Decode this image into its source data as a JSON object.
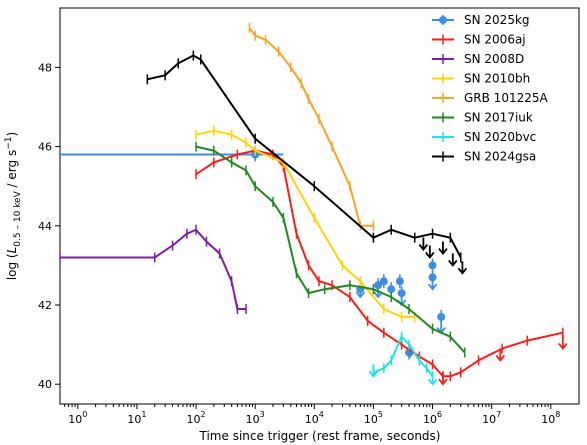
{
  "chart_data": {
    "type": "line",
    "xlabel": "Time since trigger (rest frame, seconds)",
    "ylabel": "log (L_{0.5-10 keV} / erg s^-1)",
    "x_scale": "log",
    "xlim": [
      0.5,
      300000000
    ],
    "ylim": [
      39.5,
      49.5
    ],
    "x_ticks": [
      {
        "value": 1,
        "base": "10",
        "exp": "0"
      },
      {
        "value": 10,
        "base": "10",
        "exp": "1"
      },
      {
        "value": 100,
        "base": "10",
        "exp": "2"
      },
      {
        "value": 1000,
        "base": "10",
        "exp": "3"
      },
      {
        "value": 10000,
        "base": "10",
        "exp": "4"
      },
      {
        "value": 100000,
        "base": "10",
        "exp": "5"
      },
      {
        "value": 1000000,
        "base": "10",
        "exp": "6"
      },
      {
        "value": 10000000,
        "base": "10",
        "exp": "7"
      },
      {
        "value": 100000000,
        "base": "10",
        "exp": "8"
      }
    ],
    "y_ticks": [
      40,
      42,
      44,
      46,
      48
    ],
    "legend_position": "top-right",
    "series": [
      {
        "name": "SN 2025kg",
        "color": "#3a8ee6",
        "style": "points",
        "points": [
          [
            1000,
            45.8
          ],
          [
            60000,
            42.4
          ],
          [
            120000,
            42.5
          ],
          [
            150000,
            42.6
          ],
          [
            200000,
            42.4
          ],
          [
            280000,
            42.6
          ],
          [
            300000,
            42.3
          ],
          [
            400000,
            40.8
          ],
          [
            1000000,
            42.7
          ],
          [
            1000000,
            43.0
          ],
          [
            1400000,
            41.7
          ]
        ],
        "hbar": [
          [
            0.5,
            3000,
            45.8
          ]
        ],
        "upper_limits": [
          [
            60000,
            42.2
          ],
          [
            120000,
            42.2
          ],
          [
            300000,
            42.0
          ],
          [
            420000,
            40.7
          ],
          [
            1000000,
            42.4
          ],
          [
            1400000,
            41.3
          ]
        ]
      },
      {
        "name": "SN 2006aj",
        "color": "#ff1a1a",
        "style": "line",
        "points": [
          [
            100,
            45.3
          ],
          [
            200,
            45.6
          ],
          [
            500,
            45.8
          ],
          [
            1000,
            45.9
          ],
          [
            2000,
            45.8
          ],
          [
            3000,
            45.5
          ],
          [
            5000,
            43.8
          ],
          [
            8000,
            43.0
          ],
          [
            12000,
            42.6
          ],
          [
            20000,
            42.5
          ],
          [
            40000,
            42.2
          ],
          [
            80000,
            41.6
          ],
          [
            150000,
            41.3
          ],
          [
            300000,
            41.0
          ],
          [
            600000,
            40.7
          ],
          [
            1000000,
            40.5
          ],
          [
            1500000,
            40.2
          ],
          [
            2000000,
            40.2
          ],
          [
            3000000,
            40.3
          ],
          [
            6000000,
            40.6
          ],
          [
            15000000,
            40.9
          ],
          [
            40000000,
            41.1
          ],
          [
            160000000,
            41.3
          ]
        ],
        "upper_limits": [
          [
            1500000,
            40.0
          ],
          [
            14000000,
            40.6
          ],
          [
            160000000,
            40.9
          ]
        ]
      },
      {
        "name": "SN 2008D",
        "color": "#7b1fa2",
        "style": "line",
        "points": [
          [
            0.5,
            43.2
          ],
          [
            20,
            43.2
          ],
          [
            40,
            43.5
          ],
          [
            70,
            43.8
          ],
          [
            100,
            43.9
          ],
          [
            150,
            43.6
          ],
          [
            250,
            43.3
          ],
          [
            400,
            42.6
          ],
          [
            500,
            41.9
          ],
          [
            700,
            41.9
          ]
        ]
      },
      {
        "name": "SN 2010bh",
        "color": "#ffd400",
        "style": "line",
        "points": [
          [
            100,
            46.3
          ],
          [
            200,
            46.4
          ],
          [
            400,
            46.3
          ],
          [
            700,
            46.1
          ],
          [
            1000,
            45.9
          ],
          [
            3000,
            45.6
          ],
          [
            10000,
            44.2
          ],
          [
            30000,
            43.0
          ],
          [
            60000,
            42.6
          ],
          [
            150000,
            41.9
          ],
          [
            300000,
            41.7
          ],
          [
            500000,
            41.7
          ]
        ]
      },
      {
        "name": "GRB 101225A",
        "color": "#f5a623",
        "style": "line",
        "points": [
          [
            800,
            49.0
          ],
          [
            1000,
            48.8
          ],
          [
            1500,
            48.7
          ],
          [
            2500,
            48.4
          ],
          [
            4000,
            48.0
          ],
          [
            6000,
            47.6
          ],
          [
            8000,
            47.2
          ],
          [
            12000,
            46.7
          ],
          [
            20000,
            46.0
          ],
          [
            40000,
            45.0
          ],
          [
            60000,
            44.0
          ],
          [
            100000,
            44.0
          ]
        ]
      },
      {
        "name": "SN 2017iuk",
        "color": "#1e8a1e",
        "style": "line",
        "points": [
          [
            100,
            46.0
          ],
          [
            200,
            45.9
          ],
          [
            400,
            45.6
          ],
          [
            700,
            45.4
          ],
          [
            1000,
            45.0
          ],
          [
            2000,
            44.6
          ],
          [
            3000,
            44.2
          ],
          [
            5000,
            42.8
          ],
          [
            8000,
            42.3
          ],
          [
            15000,
            42.4
          ],
          [
            40000,
            42.5
          ],
          [
            100000,
            42.4
          ],
          [
            200000,
            42.2
          ],
          [
            400000,
            41.9
          ],
          [
            1000000,
            41.4
          ],
          [
            2000000,
            41.2
          ],
          [
            3500000,
            40.8
          ]
        ]
      },
      {
        "name": "SN 2020bvc",
        "color": "#19e6e6",
        "style": "line",
        "points": [
          [
            100000,
            40.3
          ],
          [
            150000,
            40.4
          ],
          [
            200000,
            40.6
          ],
          [
            300000,
            41.2
          ],
          [
            400000,
            41.0
          ],
          [
            600000,
            40.6
          ],
          [
            800000,
            40.4
          ],
          [
            1000000,
            40.2
          ]
        ],
        "upper_limits": [
          [
            100000,
            40.2
          ],
          [
            1000000,
            40.0
          ]
        ]
      },
      {
        "name": "SN 2024gsa",
        "color": "#000000",
        "style": "line",
        "points": [
          [
            15,
            47.7
          ],
          [
            30,
            47.8
          ],
          [
            50,
            48.1
          ],
          [
            90,
            48.3
          ],
          [
            120,
            48.2
          ],
          [
            1000,
            46.2
          ],
          [
            10000,
            45.0
          ],
          [
            100000,
            43.7
          ],
          [
            200000,
            43.9
          ],
          [
            500000,
            43.7
          ],
          [
            1000000,
            43.8
          ],
          [
            2000000,
            43.7
          ],
          [
            3000000,
            43.2
          ]
        ],
        "upper_limits": [
          [
            700000,
            43.4
          ],
          [
            900000,
            43.2
          ],
          [
            1500000,
            43.3
          ],
          [
            2200000,
            43.0
          ],
          [
            3200000,
            42.8
          ]
        ]
      }
    ]
  }
}
